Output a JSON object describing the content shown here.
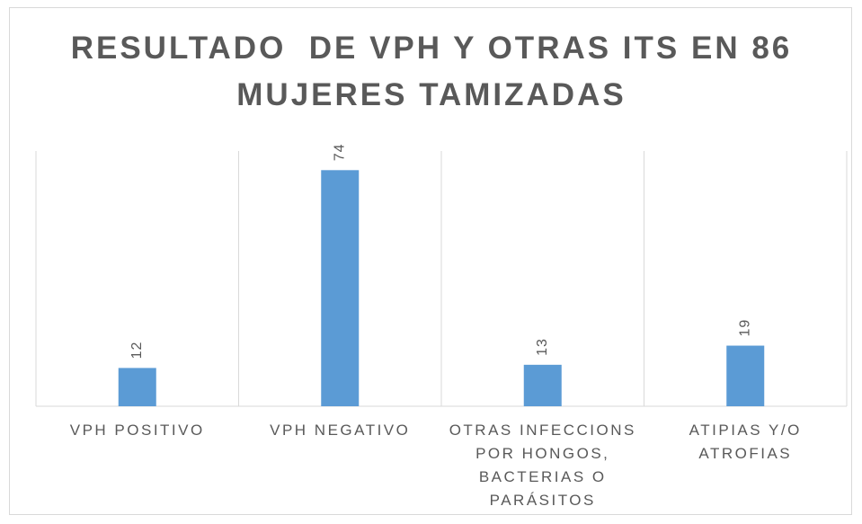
{
  "chart_data": {
    "type": "bar",
    "title": "RESULTADO  DE VPH Y OTRAS ITS EN 86 MUJERES TAMIZADAS",
    "categories": [
      "VPH POSITIVO",
      "VPH NEGATIVO",
      "OTRAS INFECCIONS POR HONGOS, BACTERIAS O PARÁSITOS",
      "ATIPIAS Y/O ATROFIAS"
    ],
    "values": [
      12,
      74,
      13,
      19
    ],
    "color": "#5b9bd5",
    "ylim": [
      0,
      80
    ]
  }
}
